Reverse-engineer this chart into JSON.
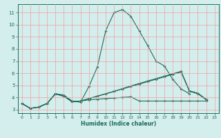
{
  "xlabel": "Humidex (Indice chaleur)",
  "bg_color": "#d4eeed",
  "grid_color": "#f0a0a0",
  "line_color": "#1a6b5a",
  "xlim": [
    -0.5,
    23.5
  ],
  "ylim": [
    2.7,
    11.7
  ],
  "yticks": [
    3,
    4,
    5,
    6,
    7,
    8,
    9,
    10,
    11
  ],
  "xticks": [
    0,
    1,
    2,
    3,
    4,
    5,
    6,
    7,
    8,
    9,
    10,
    11,
    12,
    13,
    14,
    15,
    16,
    17,
    18,
    19,
    20,
    21,
    22,
    23
  ],
  "line0_x": [
    0,
    1,
    2,
    3,
    4,
    5,
    6,
    7,
    8,
    9,
    10,
    11,
    12,
    13,
    14,
    15,
    16,
    17,
    18,
    19,
    20
  ],
  "line0_y": [
    3.5,
    3.1,
    3.2,
    3.5,
    4.3,
    4.2,
    3.7,
    3.6,
    4.9,
    6.5,
    9.5,
    11.0,
    11.25,
    10.7,
    9.5,
    8.3,
    7.0,
    6.6,
    5.5,
    4.7,
    4.3
  ],
  "line1_x": [
    0,
    1,
    2,
    3,
    4,
    5,
    6,
    7,
    8,
    9,
    10,
    11,
    12,
    13,
    14,
    15,
    16,
    17,
    18,
    19,
    20,
    21,
    22
  ],
  "line1_y": [
    3.5,
    3.1,
    3.2,
    3.5,
    4.3,
    4.1,
    3.65,
    3.7,
    3.8,
    3.85,
    3.9,
    3.95,
    4.0,
    4.05,
    3.7,
    3.7,
    3.7,
    3.7,
    3.7,
    3.7,
    3.7,
    3.7,
    3.7
  ],
  "line2_x": [
    0,
    1,
    2,
    3,
    4,
    5,
    6,
    7,
    8,
    9,
    10,
    11,
    12,
    13,
    14,
    15,
    16,
    17,
    18,
    19,
    20,
    21,
    22
  ],
  "line2_y": [
    3.5,
    3.1,
    3.2,
    3.5,
    4.3,
    4.1,
    3.65,
    3.7,
    3.9,
    4.1,
    4.3,
    4.5,
    4.7,
    4.9,
    5.1,
    5.3,
    5.5,
    5.7,
    5.9,
    6.1,
    4.5,
    4.3,
    3.8
  ],
  "line3_x": [
    0,
    1,
    2,
    3,
    4,
    5,
    6,
    7,
    8,
    9,
    10,
    11,
    12,
    13,
    14,
    15,
    16,
    17,
    18,
    19,
    20,
    21,
    22
  ],
  "line3_y": [
    3.5,
    3.1,
    3.2,
    3.5,
    4.3,
    4.1,
    3.65,
    3.7,
    3.9,
    4.1,
    4.3,
    4.5,
    4.72,
    4.95,
    5.15,
    5.35,
    5.55,
    5.75,
    5.95,
    6.15,
    4.55,
    4.35,
    3.85
  ]
}
